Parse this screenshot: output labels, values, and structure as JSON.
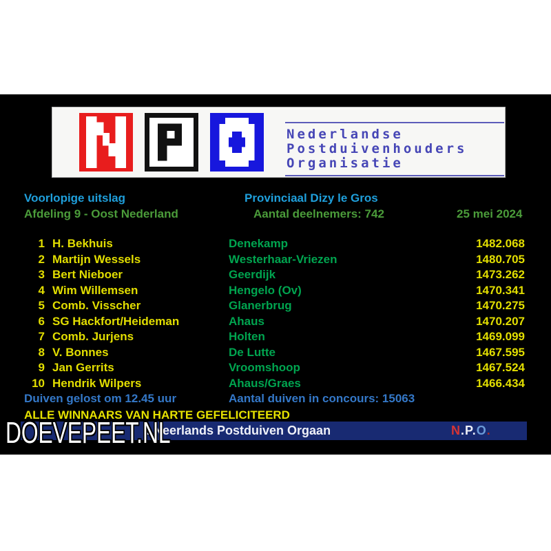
{
  "logo": {
    "letters": [
      "N",
      "P",
      "O"
    ],
    "org_lines": [
      "Nederlandse",
      "Postduivenhouders",
      "Organisatie"
    ],
    "tile_colors": {
      "n_bg": "#e81d1d",
      "p_bg": "#ffffff",
      "o_bg": "#1717dd"
    }
  },
  "header": {
    "result_status": "Voorlopige uitslag",
    "race_title": "Provinciaal Dizy le Gros",
    "department": "Afdeling 9 - Oost Nederland",
    "participants": "Aantal deelnemers: 742",
    "date": "25 mei 2024"
  },
  "results": {
    "rows": [
      {
        "rank": "1",
        "name": "H. Bekhuis",
        "place": "Denekamp",
        "points": "1482.068"
      },
      {
        "rank": "2",
        "name": "Martijn Wessels",
        "place": "Westerhaar-Vriezen",
        "points": "1480.705"
      },
      {
        "rank": "3",
        "name": "Bert Nieboer",
        "place": "Geerdijk",
        "points": "1473.262"
      },
      {
        "rank": "4",
        "name": "Wim Willemsen",
        "place": "Hengelo (Ov)",
        "points": "1470.341"
      },
      {
        "rank": "5",
        "name": "Comb. Visscher",
        "place": "Glanerbrug",
        "points": "1470.275"
      },
      {
        "rank": "6",
        "name": "SG Hackfort/Heideman",
        "place": "Ahaus",
        "points": "1470.207"
      },
      {
        "rank": "7",
        "name": "Comb. Jurjens",
        "place": "Holten",
        "points": "1469.099"
      },
      {
        "rank": "8",
        "name": "V. Bonnes",
        "place": "De Lutte",
        "points": "1467.595"
      },
      {
        "rank": "9",
        "name": "Jan Gerrits",
        "place": "Vroomshoop",
        "points": "1467.524"
      },
      {
        "rank": "10",
        "name": "Hendrik Wilpers",
        "place": "Ahaus/Graes",
        "points": "1466.434"
      }
    ]
  },
  "footer": {
    "release_info": "Duiven gelost om 12.45 uur",
    "birds_info": "Aantal duiven in concours: 15063",
    "congrats": "ALLE WINNAARS VAN HARTE GEFELICITEERD",
    "bar_text": ": Neerlands Postduiven Orgaan",
    "npo_parts": [
      {
        "t": "N",
        "c": "#d63434"
      },
      {
        "t": ".",
        "c": "#eef0f8"
      },
      {
        "t": "P",
        "c": "#eef0f8"
      },
      {
        "t": ".",
        "c": "#eef0f8"
      },
      {
        "t": "O",
        "c": "#6b9bd8"
      },
      {
        "t": ".",
        "c": "#a82a2a"
      }
    ]
  },
  "watermark": "DOEVEPEET.NL",
  "colors": {
    "panel_bg": "#000000",
    "cyan": "#1f9fdb",
    "header_green": "#4b9c3a",
    "row_yellow": "#e2de00",
    "place_green": "#00a44f",
    "footer_blue": "#3478c8",
    "bar_navy": "#182a72",
    "org_purple": "#4646b6"
  }
}
